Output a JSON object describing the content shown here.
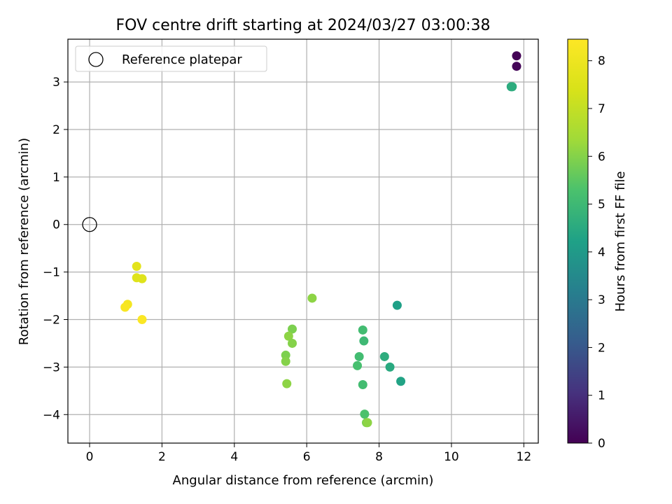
{
  "chart_data": {
    "type": "scatter",
    "title": "FOV centre drift starting at 2024/03/27 03:00:38",
    "xlabel": "Angular distance from reference (arcmin)",
    "ylabel": "Rotation from reference (arcmin)",
    "xlim": [
      -0.6,
      12.4
    ],
    "ylim": [
      -4.6,
      3.9
    ],
    "xticks": [
      0,
      2,
      4,
      6,
      8,
      10,
      12
    ],
    "yticks": [
      -4,
      -3,
      -2,
      -1,
      0,
      1,
      2,
      3
    ],
    "grid": true,
    "legend": {
      "placement": "top-left",
      "entries": [
        "Reference platepar"
      ]
    },
    "reference_point": {
      "x": 0,
      "y": 0
    },
    "colorbar": {
      "label": "Hours from first FF file",
      "range": [
        0,
        8.45
      ],
      "ticks": [
        0,
        1,
        2,
        3,
        4,
        5,
        6,
        7,
        8
      ],
      "colormap": "viridis"
    },
    "points": [
      {
        "x": 11.8,
        "y": 3.55,
        "h": 0.05
      },
      {
        "x": 11.8,
        "y": 3.33,
        "h": 0.1
      },
      {
        "x": 11.65,
        "y": 2.9,
        "h": 4.5
      },
      {
        "x": 11.68,
        "y": 2.9,
        "h": 4.6
      },
      {
        "x": 8.5,
        "y": -1.7,
        "h": 4.2
      },
      {
        "x": 8.15,
        "y": -2.78,
        "h": 4.6
      },
      {
        "x": 8.3,
        "y": -3.0,
        "h": 4.5
      },
      {
        "x": 8.6,
        "y": -3.3,
        "h": 4.3
      },
      {
        "x": 7.55,
        "y": -2.22,
        "h": 5.1
      },
      {
        "x": 7.58,
        "y": -2.45,
        "h": 5.0
      },
      {
        "x": 7.45,
        "y": -2.78,
        "h": 5.1
      },
      {
        "x": 7.4,
        "y": -2.97,
        "h": 5.2
      },
      {
        "x": 7.55,
        "y": -3.37,
        "h": 5.1
      },
      {
        "x": 7.6,
        "y": -3.99,
        "h": 5.3
      },
      {
        "x": 7.65,
        "y": -4.17,
        "h": 5.9
      },
      {
        "x": 7.68,
        "y": -4.17,
        "h": 6.1
      },
      {
        "x": 6.15,
        "y": -1.55,
        "h": 6.1
      },
      {
        "x": 5.6,
        "y": -2.2,
        "h": 5.9
      },
      {
        "x": 5.5,
        "y": -2.35,
        "h": 6.1
      },
      {
        "x": 5.6,
        "y": -2.5,
        "h": 6.0
      },
      {
        "x": 5.42,
        "y": -2.75,
        "h": 5.9
      },
      {
        "x": 5.42,
        "y": -2.88,
        "h": 6.0
      },
      {
        "x": 5.45,
        "y": -3.35,
        "h": 6.1
      },
      {
        "x": 1.3,
        "y": -0.88,
        "h": 7.7
      },
      {
        "x": 1.3,
        "y": -1.12,
        "h": 7.6
      },
      {
        "x": 1.45,
        "y": -1.14,
        "h": 7.6
      },
      {
        "x": 1.05,
        "y": -1.68,
        "h": 8.2
      },
      {
        "x": 0.98,
        "y": -1.74,
        "h": 8.3
      },
      {
        "x": 1.45,
        "y": -2.0,
        "h": 8.4
      }
    ]
  }
}
